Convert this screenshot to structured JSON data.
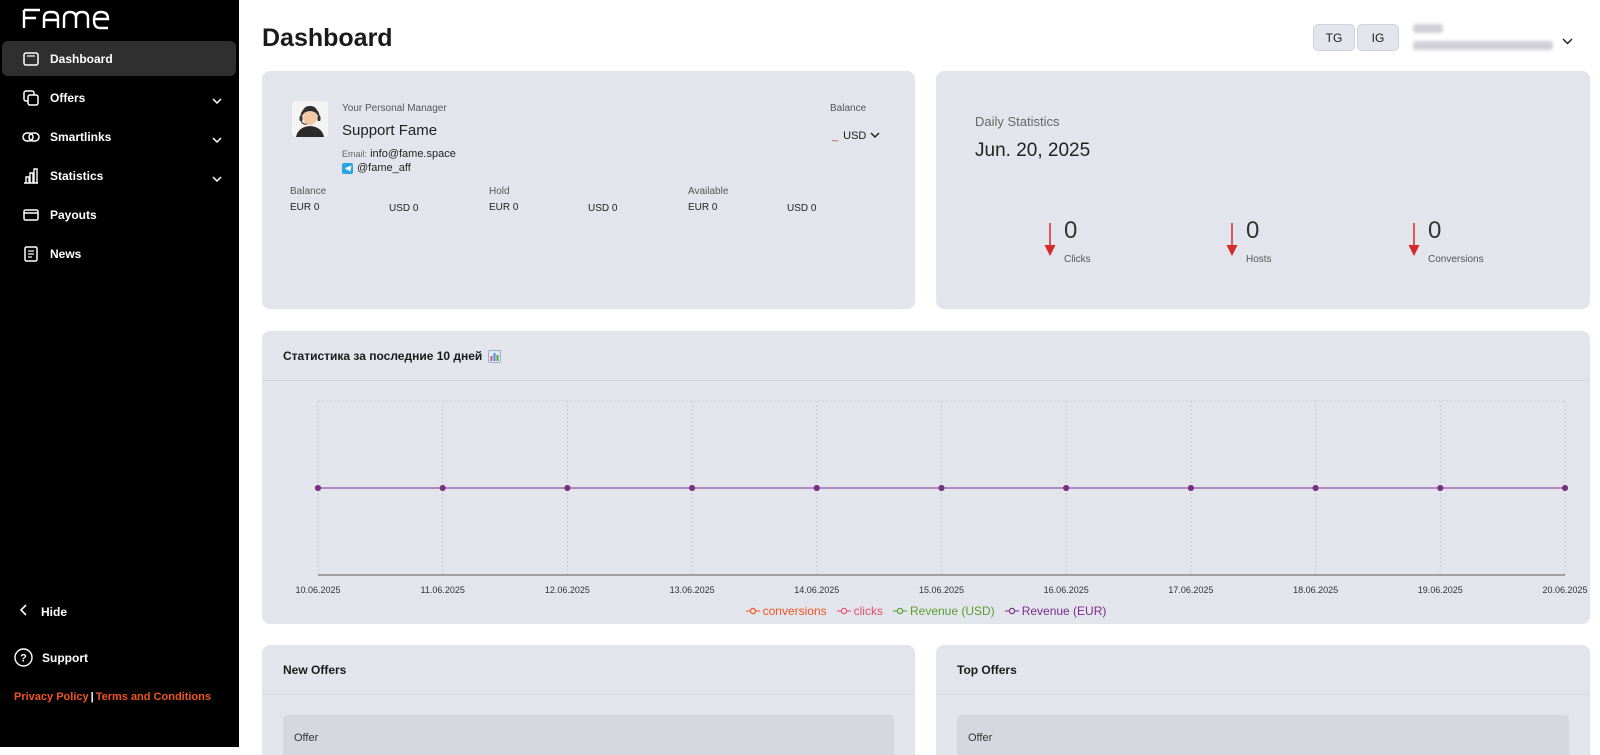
{
  "app": {
    "logo": "FAME"
  },
  "sidebar": {
    "items": [
      {
        "label": "Dashboard",
        "icon": "dashboard-icon",
        "active": true,
        "has_chevron": false
      },
      {
        "label": "Offers",
        "icon": "offers-icon",
        "active": false,
        "has_chevron": true
      },
      {
        "label": "Smartlinks",
        "icon": "link-icon",
        "active": false,
        "has_chevron": true
      },
      {
        "label": "Statistics",
        "icon": "chart-icon",
        "active": false,
        "has_chevron": true
      },
      {
        "label": "Payouts",
        "icon": "card-icon",
        "active": false,
        "has_chevron": false
      },
      {
        "label": "News",
        "icon": "news-icon",
        "active": false,
        "has_chevron": false
      }
    ],
    "hide_label": "Hide",
    "support_label": "Support",
    "privacy_label": "Privacy Policy",
    "separator": "|",
    "terms_label": "Terms and Conditions"
  },
  "header": {
    "title": "Dashboard",
    "buttons": [
      "TG",
      "IG"
    ]
  },
  "manager": {
    "caption": "Your Personal Manager",
    "name": "Support Fame",
    "email_label": "Email:",
    "email": "info@fame.space",
    "telegram": "@fame_aff",
    "balance_label": "Balance",
    "balance_value": "_",
    "currency": "USD",
    "balances": [
      {
        "header": "Balance",
        "value": "EUR 0"
      },
      {
        "header": "",
        "value": "USD 0"
      },
      {
        "header": "Hold",
        "value": "EUR 0"
      },
      {
        "header": "",
        "value": "USD 0"
      },
      {
        "header": "Available",
        "value": "EUR 0"
      },
      {
        "header": "",
        "value": "USD 0"
      }
    ]
  },
  "daily": {
    "label": "Daily Statistics",
    "date": "Jun. 20, 2025",
    "stats": [
      {
        "value": "0",
        "label": "Clicks"
      },
      {
        "value": "0",
        "label": "Hosts"
      },
      {
        "value": "0",
        "label": "Conversions"
      }
    ]
  },
  "chart_section": {
    "title": "Статистика за последние 10 дней",
    "emoji": "📊"
  },
  "chart_data": {
    "type": "line",
    "title": "Статистика за последние 10 дней",
    "categories": [
      "10.06.2025",
      "11.06.2025",
      "12.06.2025",
      "13.06.2025",
      "14.06.2025",
      "15.06.2025",
      "16.06.2025",
      "17.06.2025",
      "18.06.2025",
      "19.06.2025",
      "20.06.2025"
    ],
    "series": [
      {
        "name": "conversions",
        "color": "#f0551f",
        "values": [
          0,
          0,
          0,
          0,
          0,
          0,
          0,
          0,
          0,
          0,
          0
        ]
      },
      {
        "name": "clicks",
        "color": "#e0506e",
        "values": [
          0,
          0,
          0,
          0,
          0,
          0,
          0,
          0,
          0,
          0,
          0
        ]
      },
      {
        "name": "Revenue (USD)",
        "color": "#5a9e2f",
        "values": [
          0,
          0,
          0,
          0,
          0,
          0,
          0,
          0,
          0,
          0,
          0
        ]
      },
      {
        "name": "Revenue (EUR)",
        "color": "#7b2d8e",
        "values": [
          0,
          0,
          0,
          0,
          0,
          0,
          0,
          0,
          0,
          0,
          0
        ]
      }
    ],
    "grid": true,
    "legend": "bottom"
  },
  "new_offers": {
    "title": "New Offers",
    "column": "Offer"
  },
  "top_offers": {
    "title": "Top Offers",
    "column": "Offer"
  }
}
